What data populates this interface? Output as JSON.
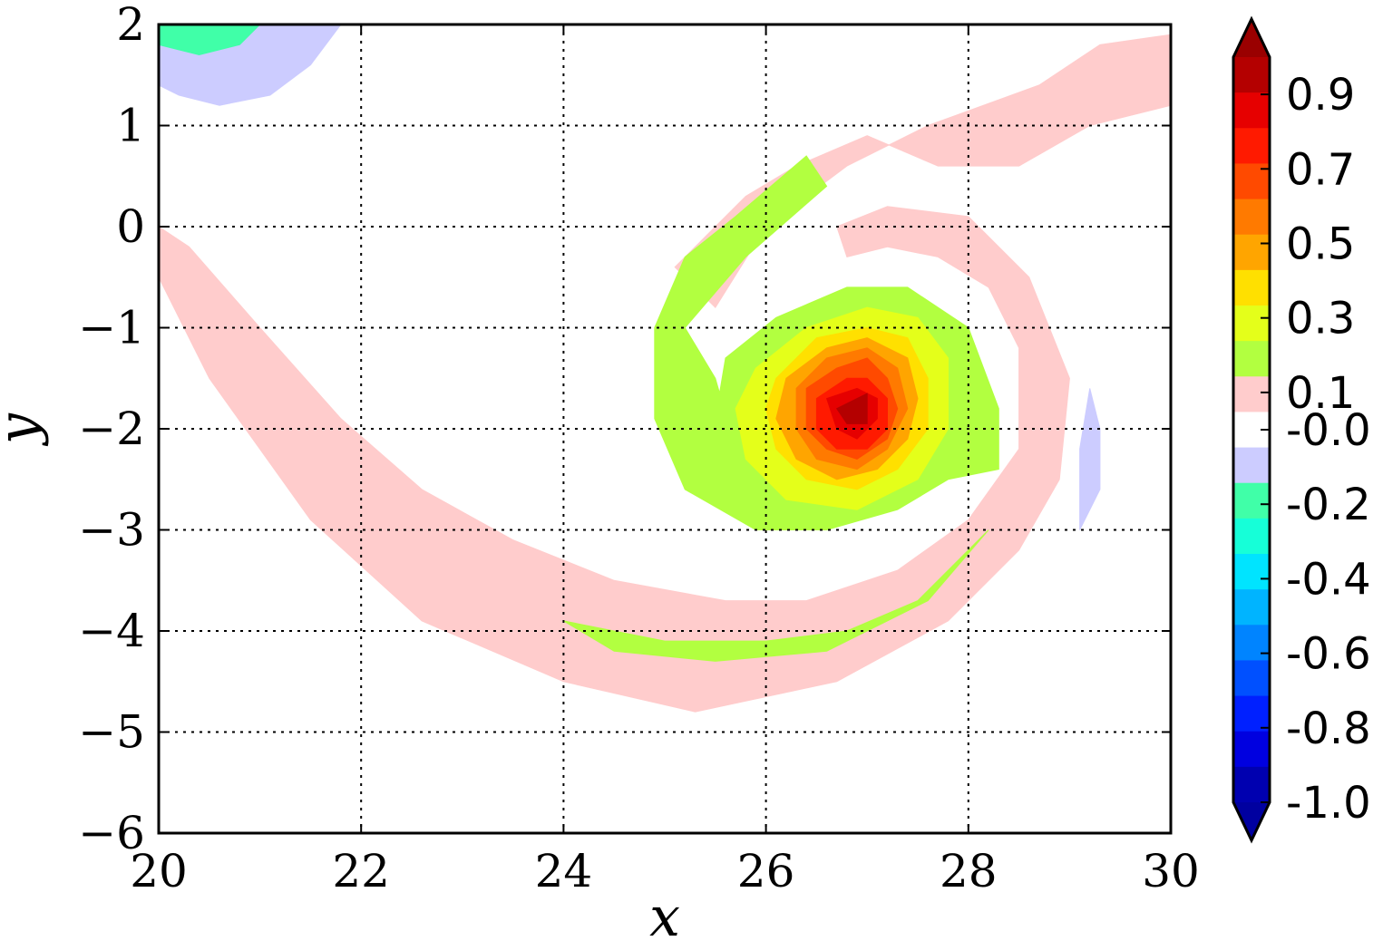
{
  "chart_data": {
    "type": "contour",
    "title": "",
    "xlabel": "x",
    "ylabel": "y",
    "xlim": [
      20,
      30
    ],
    "ylim": [
      -6,
      2
    ],
    "xticks": [
      {
        "value": 20,
        "label": "20"
      },
      {
        "value": 22,
        "label": "22"
      },
      {
        "value": 24,
        "label": "24"
      },
      {
        "value": 26,
        "label": "26"
      },
      {
        "value": 28,
        "label": "28"
      },
      {
        "value": 30,
        "label": "30"
      }
    ],
    "yticks": [
      {
        "value": 2,
        "label": "2"
      },
      {
        "value": 1,
        "label": "1"
      },
      {
        "value": 0,
        "label": "0"
      },
      {
        "value": -1,
        "label": "−1"
      },
      {
        "value": -2,
        "label": "−2"
      },
      {
        "value": -3,
        "label": "−3"
      },
      {
        "value": -4,
        "label": "−4"
      },
      {
        "value": -5,
        "label": "−5"
      },
      {
        "value": -6,
        "label": "−6"
      }
    ],
    "grid": true,
    "colorbar": {
      "extend": "both",
      "range": [
        -1.0,
        1.0
      ],
      "step": 0.1,
      "tick_labels": [
        "0.9",
        "0.7",
        "0.5",
        "0.3",
        "0.1",
        "-0.0",
        "-0.2",
        "-0.4",
        "-0.6",
        "-0.8",
        "-1.0"
      ],
      "tick_values": [
        0.9,
        0.7,
        0.5,
        0.3,
        0.1,
        0.0,
        -0.2,
        -0.4,
        -0.6,
        -0.8,
        -1.0
      ],
      "bands_top_to_bottom": [
        "#b40000",
        "#e60000",
        "#ff1a00",
        "#ff4a00",
        "#ff7a00",
        "#ffa500",
        "#ffe000",
        "#e4ff1a",
        "#b2ff40",
        "#ffcccc",
        "#ffffff",
        "#ccccff",
        "#40ffa8",
        "#16ffd8",
        "#00e4ff",
        "#00b4ff",
        "#0084ff",
        "#0050ff",
        "#0020ff",
        "#0000e0",
        "#0000b0"
      ],
      "over_color": "#9a0000",
      "under_color": "#0000a0"
    },
    "vortex": {
      "center": [
        26.9,
        -1.9
      ],
      "peak_value": 0.95
    },
    "regions": [
      {
        "level": 0.05,
        "color": "#ffcccc",
        "polygon": [
          [
            20.0,
            0.0
          ],
          [
            20.3,
            -0.2
          ],
          [
            21.0,
            -1.0
          ],
          [
            21.8,
            -1.9
          ],
          [
            22.6,
            -2.6
          ],
          [
            23.5,
            -3.1
          ],
          [
            24.5,
            -3.5
          ],
          [
            25.6,
            -3.7
          ],
          [
            26.4,
            -3.7
          ],
          [
            27.3,
            -3.4
          ],
          [
            28.0,
            -2.9
          ],
          [
            28.5,
            -2.2
          ],
          [
            28.5,
            -1.2
          ],
          [
            28.2,
            -0.6
          ],
          [
            27.7,
            -0.3
          ],
          [
            27.2,
            -0.2
          ],
          [
            26.8,
            -0.3
          ],
          [
            26.7,
            0.0
          ],
          [
            27.2,
            0.2
          ],
          [
            28.0,
            0.1
          ],
          [
            28.6,
            -0.5
          ],
          [
            29.0,
            -1.5
          ],
          [
            28.9,
            -2.5
          ],
          [
            28.5,
            -3.2
          ],
          [
            27.8,
            -3.9
          ],
          [
            26.7,
            -4.5
          ],
          [
            25.3,
            -4.8
          ],
          [
            24.0,
            -4.5
          ],
          [
            22.6,
            -3.9
          ],
          [
            21.5,
            -2.9
          ],
          [
            20.5,
            -1.5
          ],
          [
            20.0,
            -0.5
          ]
        ]
      },
      {
        "level": 0.05,
        "color": "#ffcccc",
        "polygon": [
          [
            25.5,
            -0.8
          ],
          [
            26.0,
            0.0
          ],
          [
            26.8,
            0.6
          ],
          [
            27.6,
            1.0
          ],
          [
            28.7,
            1.4
          ],
          [
            29.3,
            1.8
          ],
          [
            30.0,
            1.9
          ],
          [
            30.0,
            1.2
          ],
          [
            29.2,
            1.0
          ],
          [
            28.5,
            0.6
          ],
          [
            27.7,
            0.6
          ],
          [
            27.0,
            0.9
          ],
          [
            26.3,
            0.6
          ],
          [
            25.8,
            0.3
          ],
          [
            25.1,
            -0.4
          ]
        ]
      },
      {
        "level": 0.15,
        "color": "#b2ff40",
        "polygon": [
          [
            25.2,
            -1.0
          ],
          [
            25.8,
            -0.3
          ],
          [
            26.6,
            0.4
          ],
          [
            26.4,
            0.7
          ],
          [
            25.7,
            0.1
          ],
          [
            25.2,
            -0.3
          ],
          [
            24.9,
            -1.0
          ],
          [
            24.9,
            -1.9
          ],
          [
            25.2,
            -2.6
          ],
          [
            25.9,
            -3.0
          ],
          [
            26.6,
            -3.0
          ],
          [
            27.3,
            -2.8
          ],
          [
            27.8,
            -2.5
          ],
          [
            28.3,
            -2.4
          ],
          [
            28.3,
            -1.8
          ],
          [
            28.0,
            -1.0
          ],
          [
            27.4,
            -0.6
          ],
          [
            26.8,
            -0.6
          ],
          [
            26.1,
            -0.9
          ],
          [
            25.6,
            -1.3
          ],
          [
            25.5,
            -1.9
          ],
          [
            25.7,
            -2.2
          ],
          [
            25.5,
            -1.5
          ]
        ]
      },
      {
        "level": 0.15,
        "color": "#b2ff40",
        "polygon": [
          [
            24.0,
            -3.9
          ],
          [
            25.0,
            -4.1
          ],
          [
            26.0,
            -4.1
          ],
          [
            26.8,
            -4.0
          ],
          [
            27.5,
            -3.7
          ],
          [
            28.1,
            -3.1
          ],
          [
            28.2,
            -3.0
          ],
          [
            27.6,
            -3.7
          ],
          [
            26.6,
            -4.2
          ],
          [
            25.5,
            -4.3
          ],
          [
            24.5,
            -4.2
          ]
        ]
      },
      {
        "level": 0.25,
        "color": "#e4ff1a",
        "polygon": [
          [
            25.9,
            -1.4
          ],
          [
            26.4,
            -1.0
          ],
          [
            27.0,
            -0.8
          ],
          [
            27.5,
            -0.9
          ],
          [
            27.8,
            -1.3
          ],
          [
            27.8,
            -2.0
          ],
          [
            27.5,
            -2.5
          ],
          [
            26.9,
            -2.8
          ],
          [
            26.2,
            -2.7
          ],
          [
            25.8,
            -2.3
          ],
          [
            25.7,
            -1.8
          ]
        ]
      },
      {
        "level": 0.35,
        "color": "#ffe000",
        "polygon": [
          [
            26.1,
            -1.5
          ],
          [
            26.5,
            -1.1
          ],
          [
            27.0,
            -1.0
          ],
          [
            27.4,
            -1.1
          ],
          [
            27.6,
            -1.5
          ],
          [
            27.6,
            -2.0
          ],
          [
            27.3,
            -2.4
          ],
          [
            26.9,
            -2.6
          ],
          [
            26.4,
            -2.5
          ],
          [
            26.1,
            -2.2
          ],
          [
            26.0,
            -1.8
          ]
        ]
      },
      {
        "level": 0.45,
        "color": "#ffa500",
        "polygon": [
          [
            26.2,
            -1.5
          ],
          [
            26.6,
            -1.2
          ],
          [
            27.0,
            -1.1
          ],
          [
            27.4,
            -1.3
          ],
          [
            27.5,
            -1.7
          ],
          [
            27.4,
            -2.1
          ],
          [
            27.1,
            -2.4
          ],
          [
            26.7,
            -2.5
          ],
          [
            26.3,
            -2.3
          ],
          [
            26.1,
            -1.9
          ]
        ]
      },
      {
        "level": 0.55,
        "color": "#ff7a00",
        "polygon": [
          [
            26.3,
            -1.6
          ],
          [
            26.6,
            -1.3
          ],
          [
            27.0,
            -1.2
          ],
          [
            27.3,
            -1.4
          ],
          [
            27.4,
            -1.8
          ],
          [
            27.2,
            -2.2
          ],
          [
            26.9,
            -2.4
          ],
          [
            26.5,
            -2.3
          ],
          [
            26.3,
            -2.0
          ]
        ]
      },
      {
        "level": 0.65,
        "color": "#ff4a00",
        "polygon": [
          [
            26.4,
            -1.6
          ],
          [
            26.7,
            -1.4
          ],
          [
            27.0,
            -1.3
          ],
          [
            27.2,
            -1.5
          ],
          [
            27.3,
            -1.8
          ],
          [
            27.2,
            -2.1
          ],
          [
            26.9,
            -2.3
          ],
          [
            26.6,
            -2.2
          ],
          [
            26.4,
            -2.0
          ]
        ]
      },
      {
        "level": 0.75,
        "color": "#ff1a00",
        "polygon": [
          [
            26.5,
            -1.7
          ],
          [
            26.8,
            -1.5
          ],
          [
            27.0,
            -1.5
          ],
          [
            27.2,
            -1.7
          ],
          [
            27.2,
            -2.0
          ],
          [
            27.0,
            -2.2
          ],
          [
            26.7,
            -2.2
          ],
          [
            26.5,
            -2.0
          ]
        ]
      },
      {
        "level": 0.85,
        "color": "#e60000",
        "polygon": [
          [
            26.6,
            -1.7
          ],
          [
            26.9,
            -1.6
          ],
          [
            27.1,
            -1.7
          ],
          [
            27.1,
            -1.9
          ],
          [
            26.9,
            -2.1
          ],
          [
            26.7,
            -2.0
          ]
        ]
      },
      {
        "level": 0.95,
        "color": "#b40000",
        "polygon": [
          [
            26.7,
            -1.8
          ],
          [
            27.0,
            -1.65
          ],
          [
            27.0,
            -1.95
          ],
          [
            26.8,
            -1.95
          ]
        ]
      },
      {
        "level": -0.05,
        "color": "#ccccff",
        "polygon": [
          [
            20.0,
            2.0
          ],
          [
            21.8,
            2.0
          ],
          [
            21.5,
            1.6
          ],
          [
            21.1,
            1.3
          ],
          [
            20.6,
            1.2
          ],
          [
            20.2,
            1.3
          ],
          [
            20.0,
            1.4
          ]
        ]
      },
      {
        "level": -0.15,
        "color": "#40ffa8",
        "polygon": [
          [
            20.0,
            2.0
          ],
          [
            21.0,
            2.0
          ],
          [
            20.8,
            1.8
          ],
          [
            20.4,
            1.7
          ],
          [
            20.0,
            1.8
          ]
        ]
      },
      {
        "level": -0.05,
        "color": "#ccccff",
        "polygon": [
          [
            29.2,
            -1.6
          ],
          [
            29.3,
            -2.0
          ],
          [
            29.3,
            -2.6
          ],
          [
            29.1,
            -3.0
          ],
          [
            29.1,
            -2.2
          ]
        ]
      }
    ]
  }
}
